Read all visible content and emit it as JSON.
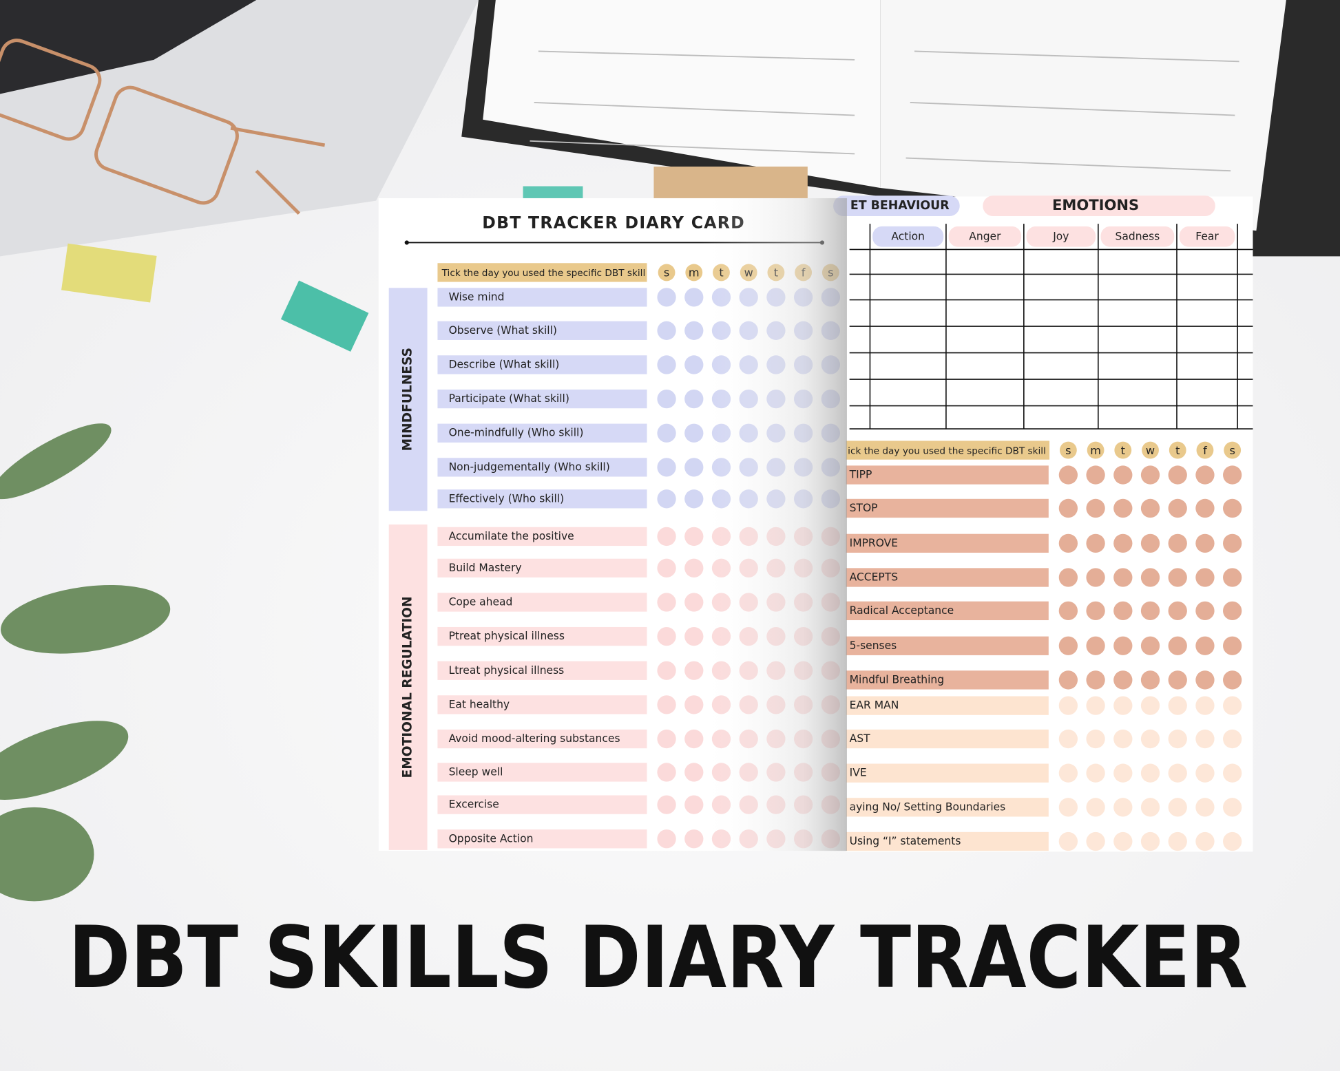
{
  "banner": "DBT SKILLS DIARY TRACKER",
  "left_page": {
    "title": "DBT TRACKER DIARY CARD",
    "instruction": "Tick the day you used the specific DBT skill",
    "days": [
      "s",
      "m",
      "t",
      "w",
      "t",
      "f",
      "s"
    ],
    "sections": [
      {
        "label": "MINDFULNESS",
        "skills": [
          "Wise mind",
          "Observe (What skill)",
          "Describe (What skill)",
          "Participate (What skill)",
          "One-mindfully (Who skill)",
          "Non-judgementally (Who skill)",
          "Effectively (Who skill)"
        ]
      },
      {
        "label": "EMOTIONAL REGULATION",
        "skills": [
          "Accumilate the positive",
          "Build Mastery",
          "Cope ahead",
          "Ptreat physical illness",
          "Ltreat physical illness",
          "Eat healthy",
          "Avoid mood-altering substances",
          "Sleep well",
          "Excercise",
          "Opposite Action"
        ]
      }
    ]
  },
  "right_page": {
    "headers": [
      "ET BEHAVIOUR",
      "EMOTIONS"
    ],
    "columns": [
      "Action",
      "Anger",
      "Joy",
      "Sadness",
      "Fear"
    ],
    "instruction": "ick the day you used the specific DBT skill",
    "days": [
      "s",
      "m",
      "t",
      "w",
      "t",
      "f",
      "s"
    ],
    "skill_groups": [
      [
        "TIPP",
        "STOP",
        "IMPROVE",
        "ACCEPTS",
        "Radical Acceptance",
        "5-senses",
        "Mindful Breathing"
      ],
      [
        "EAR MAN",
        "AST",
        "IVE",
        "aying No/ Setting Boundaries",
        "Using “I” statements"
      ]
    ]
  }
}
